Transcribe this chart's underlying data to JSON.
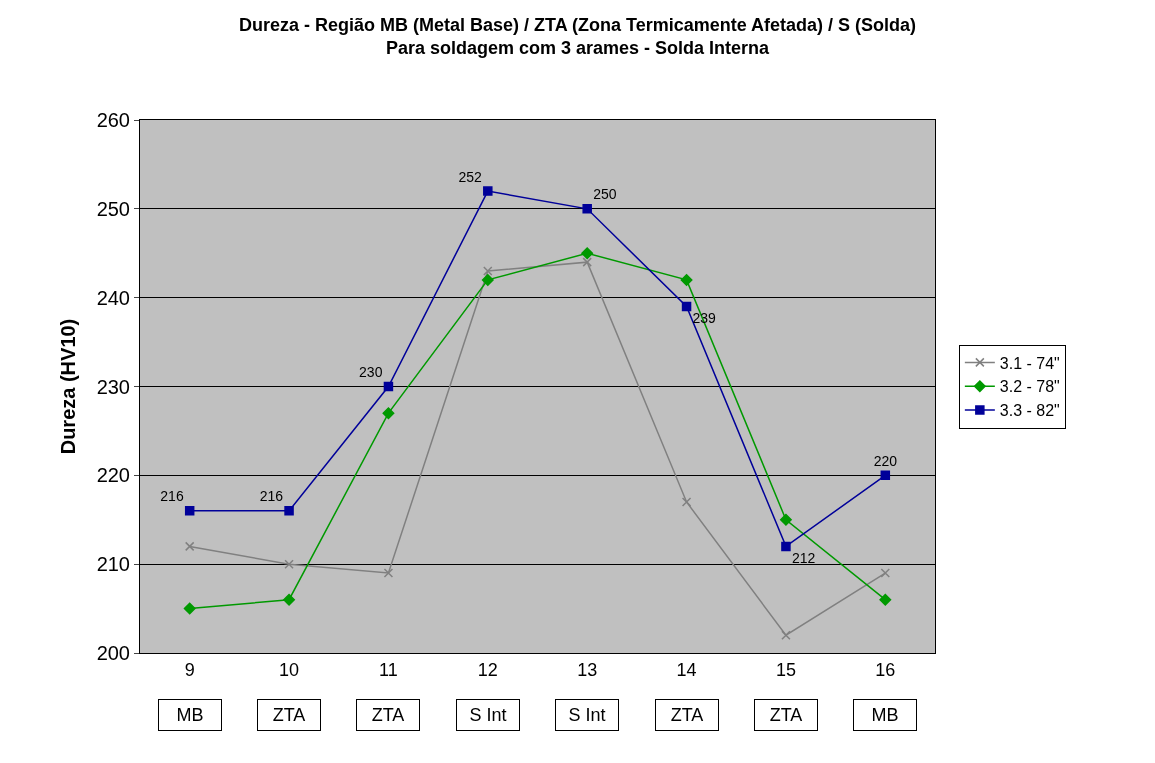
{
  "chart_data": {
    "type": "line",
    "title": "Dureza - Região MB (Metal Base) / ZTA (Zona Termicamente Afetada) / S (Solda)",
    "subtitle": "Para soldagem com 3 arames - Solda Interna",
    "ylabel": "Dureza (HV10)",
    "categories": [
      "9",
      "10",
      "11",
      "12",
      "13",
      "14",
      "15",
      "16"
    ],
    "series": [
      {
        "name": "3.1 - 74\"",
        "color": "#808080",
        "marker": "cross",
        "values": [
          212,
          210,
          209,
          243,
          244,
          217,
          202,
          209
        ]
      },
      {
        "name": "3.2 - 78\"",
        "color": "#009900",
        "marker": "diamond",
        "values": [
          205,
          206,
          227,
          242,
          245,
          242,
          215,
          206
        ]
      },
      {
        "name": "3.3 - 82\"",
        "color": "#000099",
        "marker": "square",
        "values": [
          216,
          216,
          230,
          252,
          250,
          239,
          212,
          220
        ],
        "value_labels": [
          "216",
          "216",
          "230",
          "252",
          "250",
          "239",
          "212",
          "220"
        ]
      }
    ],
    "annotations": [
      "MB",
      "ZTA",
      "ZTA",
      "S Int",
      "S Int",
      "ZTA",
      "ZTA",
      "MB"
    ],
    "ylim": [
      200,
      260
    ],
    "yticks": [
      200,
      210,
      220,
      230,
      240,
      250,
      260
    ],
    "grid": "y",
    "legend": "right",
    "line_style": "solid"
  }
}
